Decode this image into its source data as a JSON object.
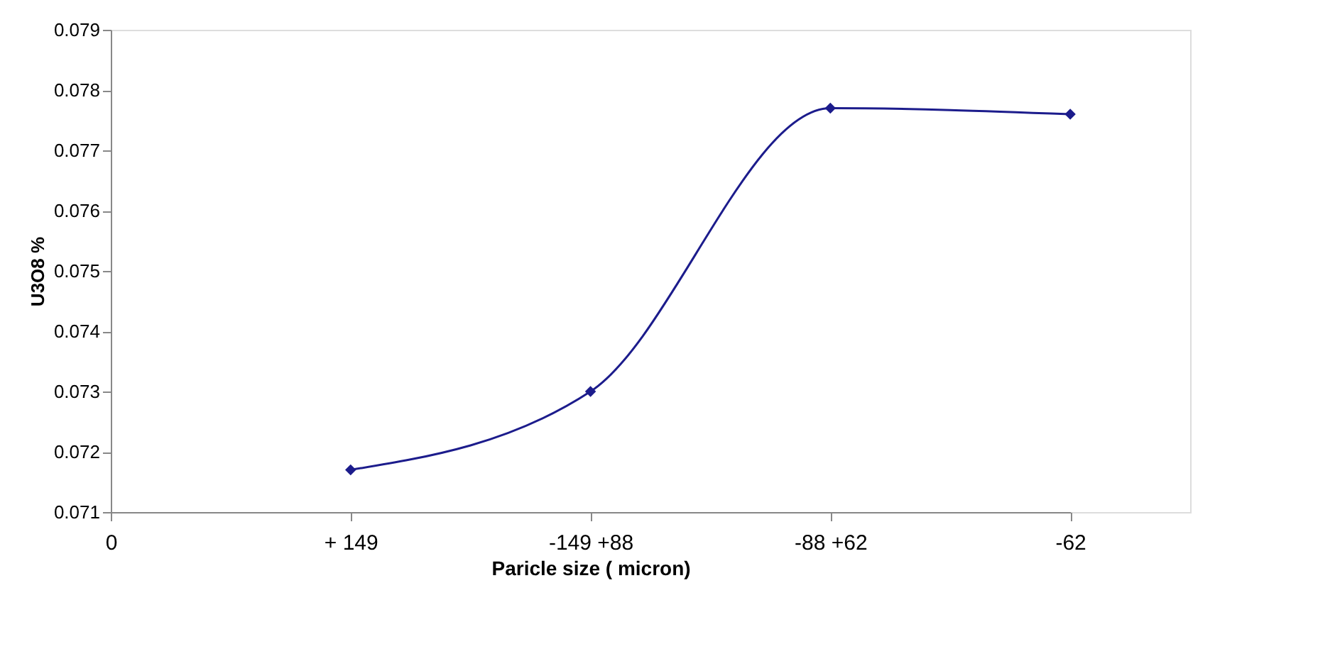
{
  "chart_data": {
    "type": "line",
    "xlabel": "Paricle size ( micron)",
    "ylabel": "U3O8 %",
    "categories": [
      "0",
      "+ 149",
      "-149 +88",
      "-88 +62",
      "-62"
    ],
    "series": [
      {
        "color": "#1c1c8c",
        "values": [
          null,
          0.0717,
          0.073,
          0.0777,
          0.0776
        ]
      }
    ],
    "ylim": [
      0.071,
      0.079
    ],
    "yticks": [
      0.071,
      0.072,
      0.073,
      0.074,
      0.075,
      0.076,
      0.077,
      0.078,
      0.079
    ],
    "grid": false,
    "legend": false,
    "marker": "diamond",
    "line_style": "solid"
  }
}
